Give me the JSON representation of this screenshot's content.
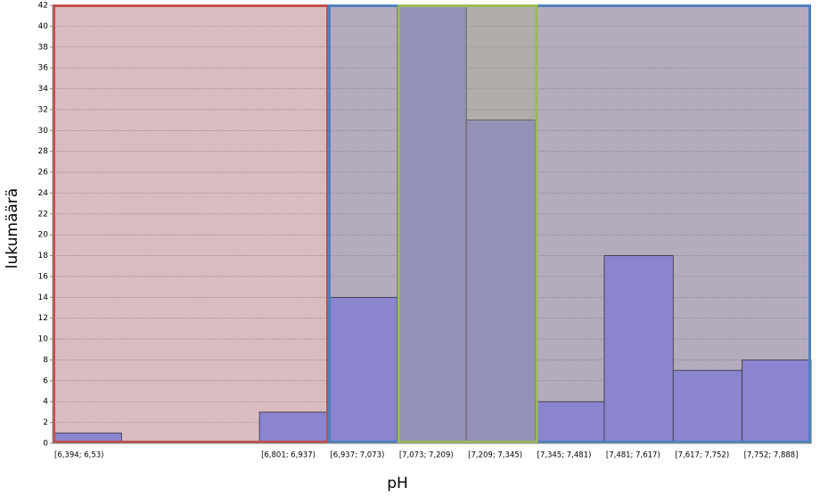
{
  "chart_data": {
    "type": "bar",
    "x_label": "pH",
    "y_label": "lukumäärä",
    "categories": [
      "[6,394; 6,53)",
      null,
      null,
      "[6,801; 6,937)",
      "[6,937; 7,073)",
      "[7,073; 7,209)",
      "[7,209; 7,345)",
      "[7,345; 7,481)",
      "[7,481; 7,617)",
      "[7,617; 7,752)",
      "[7,752; 7,888]"
    ],
    "values": [
      1,
      0,
      0,
      3,
      14,
      42,
      31,
      4,
      18,
      7,
      8
    ],
    "color": "#8b84cf",
    "ylim": [
      0,
      42
    ],
    "yticks": [
      0,
      2,
      4,
      6,
      8,
      10,
      12,
      14,
      16,
      18,
      20,
      22,
      24,
      26,
      28,
      30,
      32,
      34,
      36,
      38,
      40,
      42
    ],
    "grid": true
  }
}
